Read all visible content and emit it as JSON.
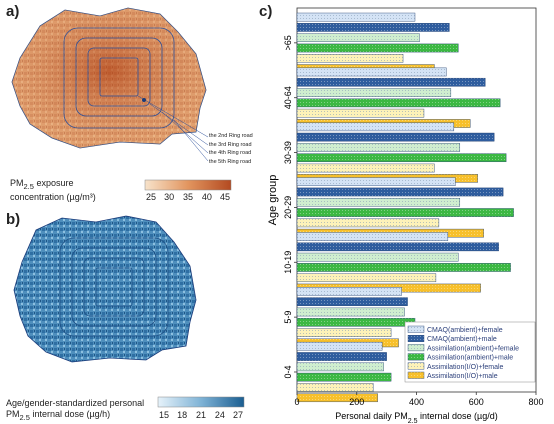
{
  "panels": {
    "a": {
      "label": "a)",
      "legend_title_html": "PM<sub>2.5</sub> exposure",
      "legend_title_2": "concentration (µg/m³)",
      "colorbar_ticks": [
        "25",
        "30",
        "35",
        "40",
        "45"
      ],
      "colorbar_colors": [
        "#f7e3cb",
        "#e2955f",
        "#b34a21"
      ],
      "ring_labels": [
        "the 2nd Ring road",
        "the 3rd Ring road",
        "the 4th Ring road",
        "the 5th Ring road"
      ]
    },
    "b": {
      "label": "b)",
      "legend_title_1": "Age/gender-standardized personal",
      "legend_title_2_html": "PM<sub>2.5</sub> internal dose (µg/h)",
      "colorbar_ticks": [
        "15",
        "18",
        "21",
        "24",
        "27"
      ],
      "colorbar_colors": [
        "#e6f2fa",
        "#7fb3d6",
        "#1b5e91"
      ]
    },
    "c": {
      "label": "c)"
    }
  },
  "chart_data": {
    "type": "bar",
    "orientation": "horizontal",
    "categories": [
      ">65",
      "40-64",
      "30-39",
      "20-29",
      "10-19",
      "5-9",
      "0-4"
    ],
    "ylabel": "Age group",
    "xlabel_html": "Personal daily PM<tspan baseline-shift='sub' font-size='7'>2.5</tspan> internal dose (µg/d)",
    "xlim": [
      0,
      800
    ],
    "xticks": [
      "0",
      "200",
      "400",
      "600",
      "800"
    ],
    "legend_position": "bottom-right",
    "series": [
      {
        "name": "CMAQ(ambient)+female",
        "color": "#d4e3f5",
        "pattern": "light",
        "values": [
          395,
          500,
          525,
          530,
          505,
          350,
          285
        ]
      },
      {
        "name": "CMAQ(ambient)+male",
        "color": "#2f5d9e",
        "pattern": "dark",
        "values": [
          510,
          630,
          660,
          690,
          675,
          370,
          300
        ]
      },
      {
        "name": "Assimilation(ambient)+female",
        "color": "#cfeecf",
        "pattern": "light",
        "values": [
          410,
          515,
          545,
          545,
          540,
          360,
          290
        ]
      },
      {
        "name": "Assimilation(ambient)+male",
        "color": "#3cb843",
        "pattern": "dark",
        "values": [
          540,
          680,
          700,
          725,
          715,
          395,
          315
        ]
      },
      {
        "name": "Assimilation(I/O)+female",
        "color": "#fdf2b8",
        "pattern": "light",
        "values": [
          355,
          425,
          460,
          475,
          465,
          315,
          255
        ]
      },
      {
        "name": "Assimilation(I/O)+male",
        "color": "#f7c02b",
        "pattern": "dark",
        "values": [
          460,
          580,
          605,
          625,
          615,
          340,
          270
        ]
      }
    ]
  }
}
